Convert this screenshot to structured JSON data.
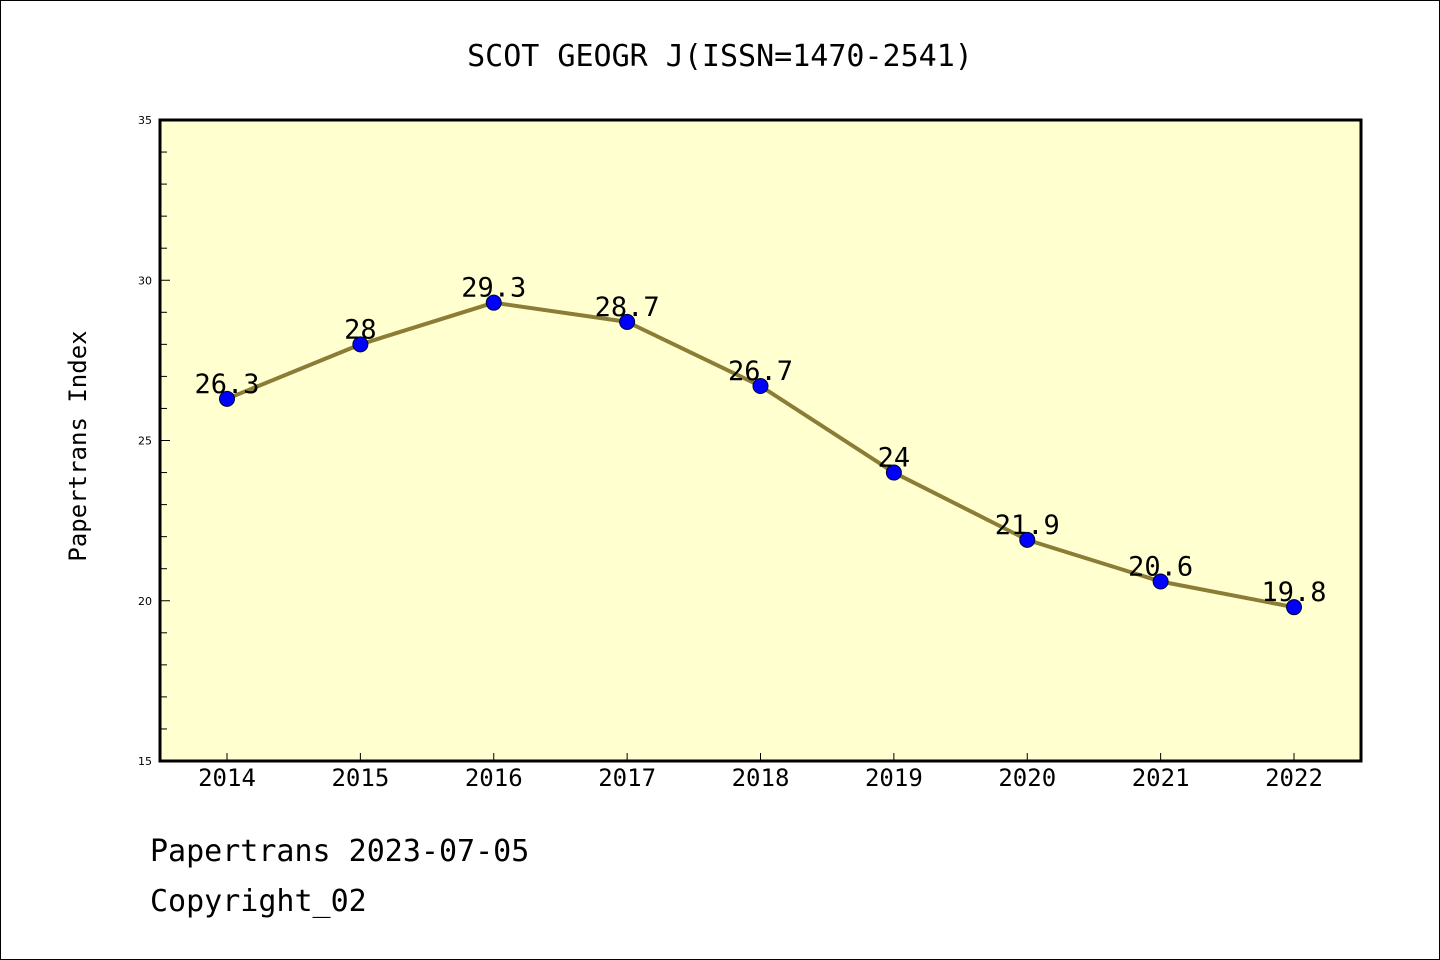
{
  "chart_data": {
    "type": "line",
    "title": "SCOT GEOGR J(ISSN=1470-2541)",
    "xlabel": "",
    "ylabel": "Papertrans Index",
    "categories": [
      "2014",
      "2015",
      "2016",
      "2017",
      "2018",
      "2019",
      "2020",
      "2021",
      "2022"
    ],
    "series": [
      {
        "values": [
          26.3,
          28,
          29.3,
          28.7,
          26.7,
          24,
          21.9,
          20.6,
          19.8
        ],
        "labels": [
          "26.3",
          "28",
          "29.3",
          "28.7",
          "26.7",
          "24",
          "21.9",
          "20.6",
          "19.8"
        ]
      }
    ],
    "ylim": [
      15,
      35
    ],
    "yticks": [
      "15",
      "20",
      "25",
      "30",
      "35"
    ],
    "grid": false,
    "legend": "none",
    "colors": {
      "plot_background": "#ffffd0",
      "line": "#8b7d35",
      "marker": "#0000ff",
      "axis": "#000000"
    }
  },
  "footer": {
    "date_line": "Papertrans 2023-07-05",
    "copyright": "Copyright_02"
  }
}
